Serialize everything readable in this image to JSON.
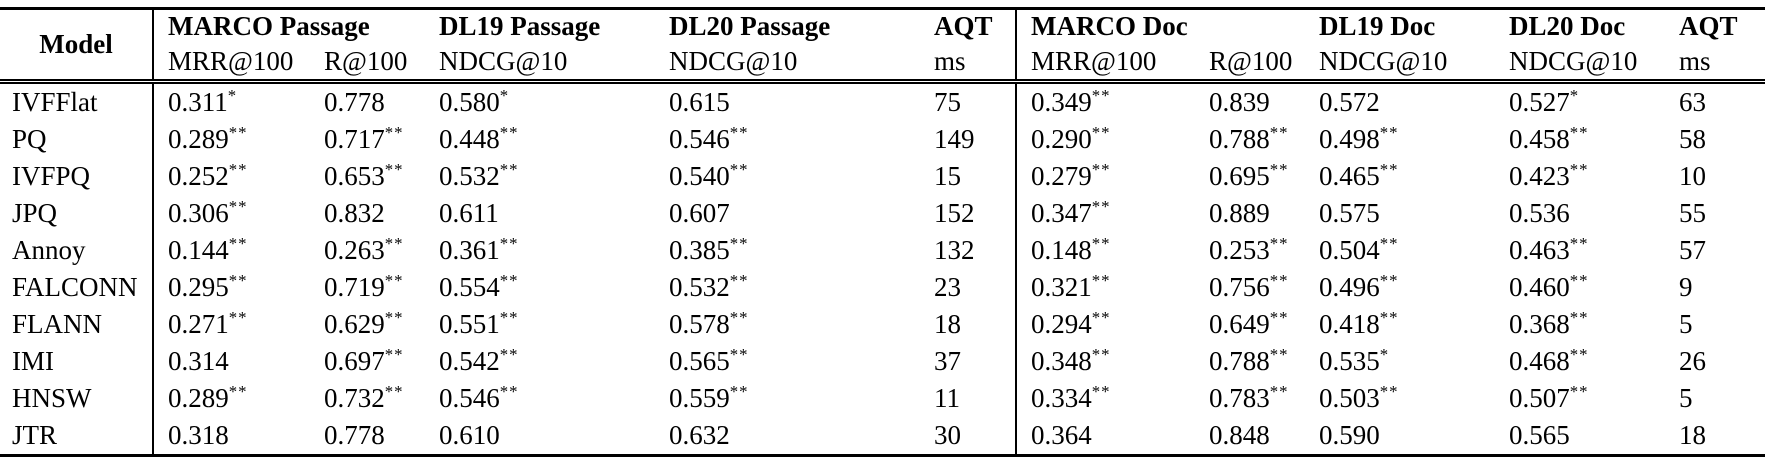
{
  "table": {
    "model_header": "Model",
    "groups": [
      {
        "label": "MARCO Passage"
      },
      {
        "label": "DL19 Passage"
      },
      {
        "label": "DL20 Passage"
      },
      {
        "label": "AQT"
      },
      {
        "label": "MARCO Doc"
      },
      {
        "label": "DL19 Doc"
      },
      {
        "label": "DL20 Doc"
      },
      {
        "label": "AQT"
      }
    ],
    "subheaders": [
      "MRR@100",
      "R@100",
      "NDCG@10",
      "NDCG@10",
      "ms",
      "MRR@100",
      "R@100",
      "NDCG@10",
      "NDCG@10",
      "ms"
    ],
    "rows": [
      {
        "model": "IVFFlat",
        "cells": [
          {
            "v": "0.311",
            "sup": "*"
          },
          {
            "v": "0.778"
          },
          {
            "v": "0.580",
            "sup": "*"
          },
          {
            "v": "0.615"
          },
          {
            "v": "75"
          },
          {
            "v": "0.349",
            "sup": "**"
          },
          {
            "v": "0.839"
          },
          {
            "v": "0.572"
          },
          {
            "v": "0.527",
            "sup": "*"
          },
          {
            "v": "63"
          }
        ]
      },
      {
        "model": "PQ",
        "cells": [
          {
            "v": "0.289",
            "sup": "**"
          },
          {
            "v": "0.717",
            "sup": "**"
          },
          {
            "v": "0.448",
            "sup": "**"
          },
          {
            "v": "0.546",
            "sup": "**"
          },
          {
            "v": "149"
          },
          {
            "v": "0.290",
            "sup": "**"
          },
          {
            "v": "0.788",
            "sup": "**"
          },
          {
            "v": "0.498",
            "sup": "**"
          },
          {
            "v": "0.458",
            "sup": "**"
          },
          {
            "v": "58"
          }
        ]
      },
      {
        "model": "IVFPQ",
        "cells": [
          {
            "v": "0.252",
            "sup": "**"
          },
          {
            "v": "0.653",
            "sup": "**"
          },
          {
            "v": "0.532",
            "sup": "**"
          },
          {
            "v": "0.540",
            "sup": "**"
          },
          {
            "v": "15"
          },
          {
            "v": "0.279",
            "sup": "**"
          },
          {
            "v": "0.695",
            "sup": "**"
          },
          {
            "v": "0.465",
            "sup": "**"
          },
          {
            "v": "0.423",
            "sup": "**"
          },
          {
            "v": "10"
          }
        ]
      },
      {
        "model": "JPQ",
        "cells": [
          {
            "v": "0.306",
            "sup": "**"
          },
          {
            "v": "0.832",
            "b": true
          },
          {
            "v": "0.611",
            "b": true
          },
          {
            "v": "0.607"
          },
          {
            "v": "152"
          },
          {
            "v": "0.347",
            "sup": "**"
          },
          {
            "v": "0.889",
            "b": true
          },
          {
            "v": "0.575"
          },
          {
            "v": "0.536"
          },
          {
            "v": "55"
          }
        ]
      },
      {
        "model": "Annoy",
        "cells": [
          {
            "v": "0.144",
            "sup": "**"
          },
          {
            "v": "0.263",
            "sup": "**"
          },
          {
            "v": "0.361",
            "sup": "**"
          },
          {
            "v": "0.385",
            "sup": "**"
          },
          {
            "v": "132"
          },
          {
            "v": "0.148",
            "sup": "**"
          },
          {
            "v": "0.253",
            "sup": "**"
          },
          {
            "v": "0.504",
            "sup": "**"
          },
          {
            "v": "0.463",
            "sup": "**"
          },
          {
            "v": "57"
          }
        ]
      },
      {
        "model": "FALCONN",
        "cells": [
          {
            "v": "0.295",
            "sup": "**"
          },
          {
            "v": "0.719",
            "sup": "**"
          },
          {
            "v": "0.554",
            "sup": "**"
          },
          {
            "v": "0.532",
            "sup": "**"
          },
          {
            "v": "23"
          },
          {
            "v": "0.321",
            "sup": "**"
          },
          {
            "v": "0.756",
            "sup": "**"
          },
          {
            "v": "0.496",
            "sup": "**"
          },
          {
            "v": "0.460",
            "sup": "**"
          },
          {
            "v": "9"
          }
        ]
      },
      {
        "model": "FLANN",
        "cells": [
          {
            "v": "0.271",
            "sup": "**"
          },
          {
            "v": "0.629",
            "sup": "**"
          },
          {
            "v": "0.551",
            "sup": "**"
          },
          {
            "v": "0.578",
            "sup": "**"
          },
          {
            "v": "18"
          },
          {
            "v": "0.294",
            "sup": "**"
          },
          {
            "v": "0.649",
            "sup": "**"
          },
          {
            "v": "0.418",
            "sup": "**"
          },
          {
            "v": "0.368",
            "sup": "**"
          },
          {
            "v": "5"
          }
        ]
      },
      {
        "model": "IMI",
        "cells": [
          {
            "v": "0.314"
          },
          {
            "v": "0.697",
            "sup": "**"
          },
          {
            "v": "0.542",
            "sup": "**"
          },
          {
            "v": "0.565",
            "sup": "**"
          },
          {
            "v": "37"
          },
          {
            "v": "0.348",
            "sup": "**"
          },
          {
            "v": "0.788",
            "sup": "**"
          },
          {
            "v": "0.535",
            "sup": "*"
          },
          {
            "v": "0.468",
            "sup": "**"
          },
          {
            "v": "26"
          }
        ]
      },
      {
        "model": "HNSW",
        "cells": [
          {
            "v": "0.289",
            "sup": "**"
          },
          {
            "v": "0.732",
            "sup": "**"
          },
          {
            "v": "0.546",
            "sup": "**"
          },
          {
            "v": "0.559",
            "sup": "**"
          },
          {
            "v": "11"
          },
          {
            "v": "0.334",
            "sup": "**"
          },
          {
            "v": "0.783",
            "sup": "**"
          },
          {
            "v": "0.503",
            "sup": "**"
          },
          {
            "v": "0.507",
            "sup": "**"
          },
          {
            "v": "5"
          }
        ]
      },
      {
        "model": "JTR",
        "cells": [
          {
            "v": "0.318",
            "b": true
          },
          {
            "v": "0.778"
          },
          {
            "v": "0.610"
          },
          {
            "v": "0.632",
            "b": true
          },
          {
            "v": "30"
          },
          {
            "v": "0.364",
            "b": true
          },
          {
            "v": "0.848"
          },
          {
            "v": "0.590",
            "b": true
          },
          {
            "v": "0.565",
            "b": true
          },
          {
            "v": "18"
          }
        ]
      }
    ]
  },
  "colors": {
    "text": "#000000",
    "background": "#ffffff",
    "rule": "#000000"
  }
}
